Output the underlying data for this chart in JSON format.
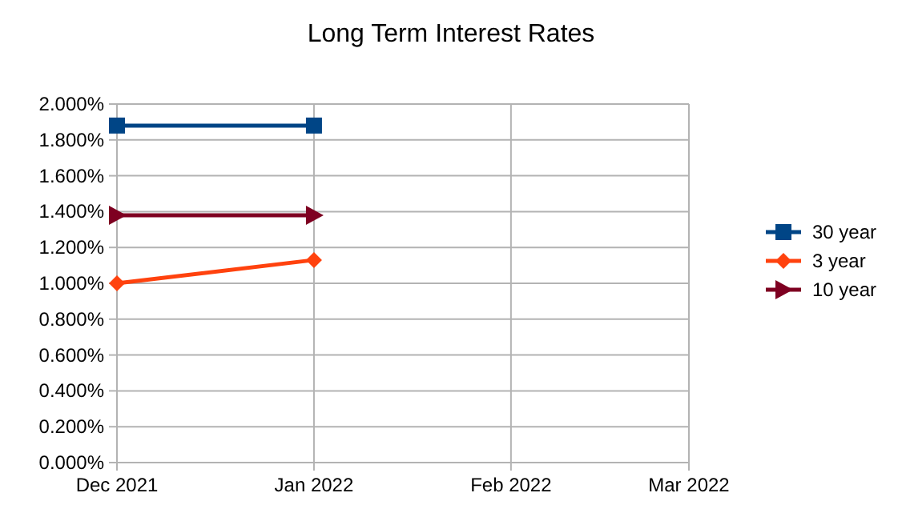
{
  "chart_data": {
    "type": "line",
    "title": "Long Term Interest Rates",
    "x": [
      "2021-12",
      "2022-01"
    ],
    "series": [
      {
        "name": "30 year",
        "color": "#004586",
        "values": [
          1.88,
          1.88
        ],
        "marker": "square"
      },
      {
        "name": "3 year",
        "color": "#ff420e",
        "values": [
          1.0,
          1.13
        ],
        "marker": "diamond"
      },
      {
        "name": "10 year",
        "color": "#7e0021",
        "values": [
          1.38,
          1.38
        ],
        "marker": "triangle"
      }
    ],
    "xlim": [
      "2021-12",
      "2022-03"
    ],
    "xticks": [
      {
        "value": "2021-12",
        "label": "Dec 2021"
      },
      {
        "value": "2022-01",
        "label": "Jan 2022"
      },
      {
        "value": "2022-02",
        "label": "Feb 2022"
      },
      {
        "value": "2022-03",
        "label": "Mar 2022"
      }
    ],
    "ylim": [
      0,
      2
    ],
    "yticks": [
      {
        "value": 0,
        "label": "0.000%"
      },
      {
        "value": 0.2,
        "label": "0.200%"
      },
      {
        "value": 0.4,
        "label": "0.400%"
      },
      {
        "value": 0.6,
        "label": "0.600%"
      },
      {
        "value": 0.8,
        "label": "0.800%"
      },
      {
        "value": 1,
        "label": "1.000%"
      },
      {
        "value": 1.2,
        "label": "1.200%"
      },
      {
        "value": 1.4,
        "label": "1.400%"
      },
      {
        "value": 1.6,
        "label": "1.600%"
      },
      {
        "value": 1.8,
        "label": "1.800%"
      },
      {
        "value": 2,
        "label": "2.000%"
      }
    ],
    "grid": true,
    "legend": "right"
  }
}
